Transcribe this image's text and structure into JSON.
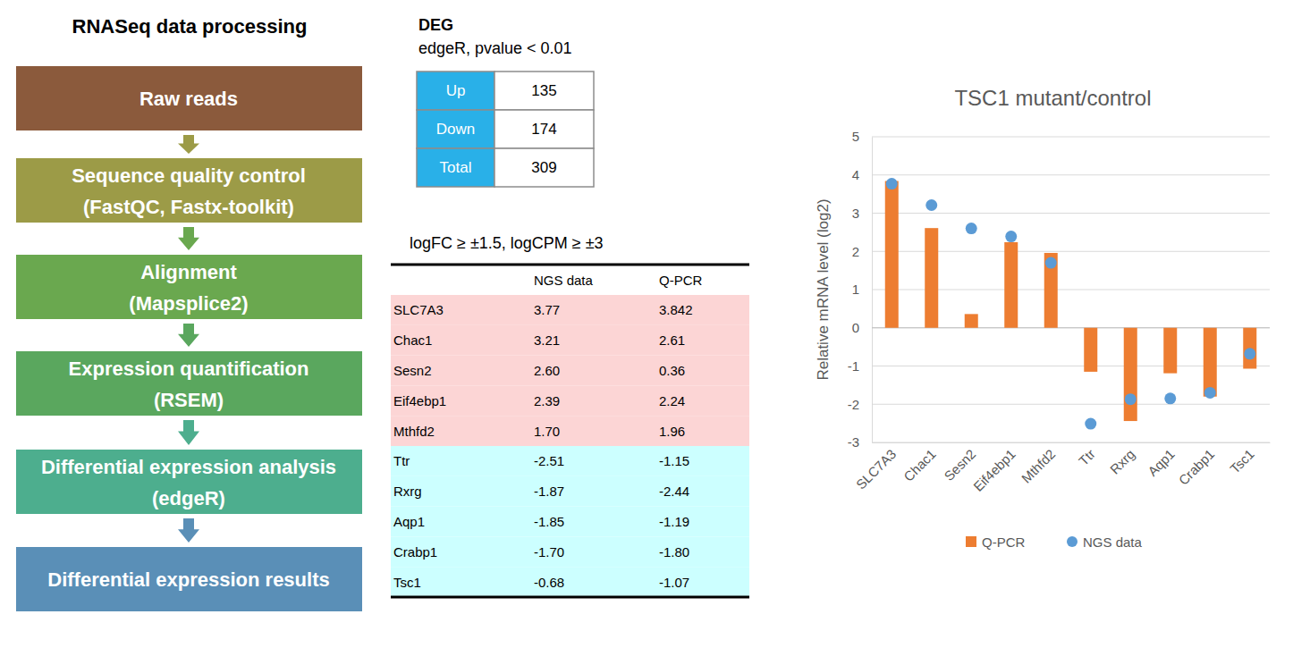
{
  "pipeline": {
    "title": "RNASeq data processing",
    "steps": [
      [
        "Raw reads"
      ],
      [
        "Sequence quality control",
        "(FastQC, Fastx-toolkit)"
      ],
      [
        "Alignment",
        "(Mapsplice2)"
      ],
      [
        "Expression quantification",
        "(RSEM)"
      ],
      [
        "Differential expression analysis",
        "(edgeR)"
      ],
      [
        "Differential expression results"
      ]
    ]
  },
  "deg": {
    "title": "DEG",
    "subtitle": "edgeR, pvalue < 0.01",
    "rows": [
      [
        "Up",
        135
      ],
      [
        "Down",
        174
      ],
      [
        "Total",
        309
      ]
    ]
  },
  "validation_table": {
    "caption": "logFC ≥ ±1.5, logCPM ≥ ±3",
    "header": [
      "NGS data",
      "Q-PCR"
    ],
    "rows": [
      [
        "SLC7A3",
        "3.77",
        "3.842"
      ],
      [
        "Chac1",
        "3.21",
        "2.61"
      ],
      [
        "Sesn2",
        "2.60",
        "0.36"
      ],
      [
        "Eif4ebp1",
        "2.39",
        "2.24"
      ],
      [
        "Mthfd2",
        "1.70",
        "1.96"
      ],
      [
        "Ttr",
        "-2.51",
        "-1.15"
      ],
      [
        "Rxrg",
        "-1.87",
        "-2.44"
      ],
      [
        "Aqp1",
        "-1.85",
        "-1.19"
      ],
      [
        "Crabp1",
        "-1.70",
        "-1.80"
      ],
      [
        "Tsc1",
        "-0.68",
        "-1.07"
      ]
    ]
  },
  "chart_data": {
    "type": "bar",
    "title": "TSC1 mutant/control",
    "ylabel": "Relative mRNA level (log2)",
    "categories": [
      "SLC7A3",
      "Chac1",
      "Sesn2",
      "Eif4ebp1",
      "Mthfd2",
      "Ttr",
      "Rxrg",
      "Aqp1",
      "Crabp1",
      "Tsc1"
    ],
    "series": [
      {
        "name": "Q-PCR",
        "type": "bar",
        "color": "#ed7d31",
        "values": [
          3.842,
          2.61,
          0.36,
          2.24,
          1.96,
          -1.15,
          -2.44,
          -1.19,
          -1.8,
          -1.07
        ]
      },
      {
        "name": "NGS data",
        "type": "scatter",
        "marker": "circle",
        "color": "#5b9bd5",
        "values": [
          3.77,
          3.21,
          2.6,
          2.39,
          1.7,
          -2.51,
          -1.87,
          -1.85,
          -1.7,
          -0.68
        ]
      }
    ],
    "ylim": [
      -3,
      5
    ],
    "yticks": [
      -3,
      -2,
      -1,
      0,
      1,
      2,
      3,
      4,
      5
    ],
    "grid": true,
    "legend": "bottom"
  }
}
